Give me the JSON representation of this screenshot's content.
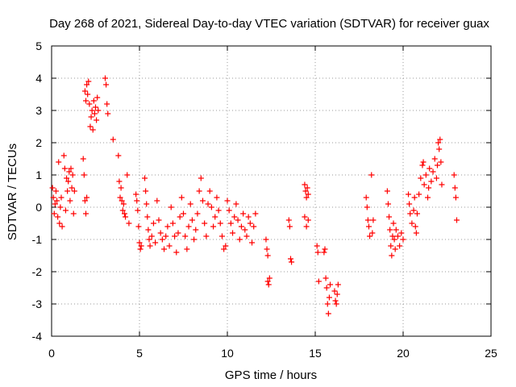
{
  "chart_data": {
    "type": "scatter",
    "title": "Day 268 of 2021, Sidereal Day-to-day VTEC variation (SDTVAR) for receiver guax",
    "xlabel": "GPS time / hours",
    "ylabel": "SDTVAR / TECUs",
    "xlim": [
      0,
      25
    ],
    "ylim": [
      -4,
      5
    ],
    "xticks": [
      0,
      5,
      10,
      15,
      20,
      25
    ],
    "yticks": [
      -4,
      -3,
      -2,
      -1,
      0,
      1,
      2,
      3,
      4,
      5
    ],
    "grid": true,
    "marker": "+",
    "color": "#ff0000",
    "series": [
      {
        "name": "SDTVAR",
        "points": [
          [
            0.05,
            0.6
          ],
          [
            0.1,
            0.3
          ],
          [
            0.15,
            -0.2
          ],
          [
            0.2,
            0.1
          ],
          [
            0.25,
            0.5
          ],
          [
            0.3,
            0.2
          ],
          [
            0.35,
            -0.3
          ],
          [
            0.4,
            1.4
          ],
          [
            0.45,
            -0.5
          ],
          [
            0.5,
            0.0
          ],
          [
            0.55,
            0.3
          ],
          [
            0.6,
            -0.6
          ],
          [
            0.7,
            1.6
          ],
          [
            0.75,
            1.2
          ],
          [
            0.8,
            -0.1
          ],
          [
            0.85,
            0.9
          ],
          [
            0.9,
            0.5
          ],
          [
            0.95,
            0.8
          ],
          [
            1.0,
            1.1
          ],
          [
            1.05,
            0.2
          ],
          [
            1.1,
            1.2
          ],
          [
            1.15,
            0.6
          ],
          [
            1.2,
            1.0
          ],
          [
            1.25,
            -0.2
          ],
          [
            1.3,
            0.5
          ],
          [
            1.8,
            1.5
          ],
          [
            1.85,
            1.0
          ],
          [
            1.9,
            0.2
          ],
          [
            1.95,
            -0.2
          ],
          [
            2.0,
            0.3
          ],
          [
            1.9,
            3.6
          ],
          [
            1.95,
            3.3
          ],
          [
            2.0,
            3.8
          ],
          [
            2.05,
            3.5
          ],
          [
            2.1,
            3.9
          ],
          [
            2.15,
            3.2
          ],
          [
            2.2,
            2.5
          ],
          [
            2.25,
            2.8
          ],
          [
            2.3,
            3.0
          ],
          [
            2.35,
            2.4
          ],
          [
            2.4,
            3.3
          ],
          [
            2.45,
            2.9
          ],
          [
            2.5,
            3.1
          ],
          [
            2.55,
            2.7
          ],
          [
            2.6,
            3.4
          ],
          [
            2.65,
            3.0
          ],
          [
            3.05,
            4.0
          ],
          [
            3.1,
            3.8
          ],
          [
            3.15,
            3.2
          ],
          [
            3.2,
            2.9
          ],
          [
            3.5,
            2.1
          ],
          [
            3.8,
            1.6
          ],
          [
            3.85,
            0.8
          ],
          [
            3.9,
            0.3
          ],
          [
            3.95,
            0.6
          ],
          [
            4.0,
            0.2
          ],
          [
            4.05,
            -0.1
          ],
          [
            4.1,
            0.1
          ],
          [
            4.15,
            -0.2
          ],
          [
            4.2,
            -0.3
          ],
          [
            4.3,
            1.0
          ],
          [
            4.4,
            -0.5
          ],
          [
            4.8,
            0.4
          ],
          [
            4.85,
            0.2
          ],
          [
            4.9,
            -0.1
          ],
          [
            4.95,
            -0.6
          ],
          [
            5.0,
            -1.1
          ],
          [
            5.05,
            -1.3
          ],
          [
            5.1,
            -1.2
          ],
          [
            5.3,
            0.9
          ],
          [
            5.35,
            0.5
          ],
          [
            5.4,
            0.1
          ],
          [
            5.45,
            -0.3
          ],
          [
            5.5,
            -0.7
          ],
          [
            5.55,
            -1.0
          ],
          [
            5.6,
            -1.2
          ],
          [
            5.7,
            -0.9
          ],
          [
            5.8,
            -0.5
          ],
          [
            5.9,
            -1.1
          ],
          [
            6.0,
            0.2
          ],
          [
            6.1,
            -0.4
          ],
          [
            6.2,
            -0.8
          ],
          [
            6.3,
            -1.0
          ],
          [
            6.4,
            -1.3
          ],
          [
            6.5,
            -0.9
          ],
          [
            6.6,
            -0.6
          ],
          [
            6.7,
            -1.2
          ],
          [
            6.8,
            0.0
          ],
          [
            6.9,
            -0.5
          ],
          [
            7.0,
            -0.9
          ],
          [
            7.1,
            -1.4
          ],
          [
            7.2,
            -0.8
          ],
          [
            7.3,
            -0.3
          ],
          [
            7.4,
            0.3
          ],
          [
            7.5,
            -0.2
          ],
          [
            7.6,
            -0.9
          ],
          [
            7.7,
            -1.3
          ],
          [
            7.8,
            -0.6
          ],
          [
            7.9,
            0.1
          ],
          [
            8.0,
            -0.4
          ],
          [
            8.1,
            -1.0
          ],
          [
            8.2,
            -0.7
          ],
          [
            8.3,
            -0.2
          ],
          [
            8.4,
            0.5
          ],
          [
            8.5,
            0.9
          ],
          [
            8.6,
            0.2
          ],
          [
            8.7,
            -0.5
          ],
          [
            8.8,
            -0.9
          ],
          [
            8.9,
            0.1
          ],
          [
            9.0,
            0.5
          ],
          [
            9.1,
            0.0
          ],
          [
            9.2,
            -0.6
          ],
          [
            9.3,
            -0.3
          ],
          [
            9.4,
            0.3
          ],
          [
            9.5,
            -0.1
          ],
          [
            9.6,
            -0.5
          ],
          [
            9.7,
            -0.9
          ],
          [
            9.8,
            -1.3
          ],
          [
            9.9,
            -1.2
          ],
          [
            10.0,
            0.2
          ],
          [
            10.1,
            -0.1
          ],
          [
            10.2,
            -0.5
          ],
          [
            10.3,
            -0.8
          ],
          [
            10.4,
            -0.3
          ],
          [
            10.5,
            0.1
          ],
          [
            10.6,
            -0.4
          ],
          [
            10.7,
            -1.0
          ],
          [
            10.8,
            -0.6
          ],
          [
            10.9,
            -0.2
          ],
          [
            11.0,
            -0.7
          ],
          [
            11.1,
            -0.9
          ],
          [
            11.2,
            -0.3
          ],
          [
            11.3,
            -0.5
          ],
          [
            11.4,
            -1.1
          ],
          [
            11.5,
            -0.6
          ],
          [
            11.6,
            -0.2
          ],
          [
            12.2,
            -1.0
          ],
          [
            12.25,
            -1.3
          ],
          [
            12.3,
            -1.5
          ],
          [
            12.3,
            -2.3
          ],
          [
            12.35,
            -2.4
          ],
          [
            12.4,
            -2.2
          ],
          [
            13.5,
            -0.4
          ],
          [
            13.55,
            -0.6
          ],
          [
            13.6,
            -1.6
          ],
          [
            13.65,
            -1.7
          ],
          [
            14.4,
            0.7
          ],
          [
            14.45,
            0.5
          ],
          [
            14.5,
            0.3
          ],
          [
            14.55,
            0.6
          ],
          [
            14.6,
            0.4
          ],
          [
            14.4,
            -0.3
          ],
          [
            14.5,
            -0.6
          ],
          [
            14.6,
            -0.4
          ],
          [
            15.1,
            -1.2
          ],
          [
            15.15,
            -1.4
          ],
          [
            15.2,
            -2.3
          ],
          [
            15.5,
            -1.4
          ],
          [
            15.55,
            -1.3
          ],
          [
            15.6,
            -2.2
          ],
          [
            15.65,
            -2.5
          ],
          [
            15.7,
            -3.0
          ],
          [
            15.75,
            -3.3
          ],
          [
            15.8,
            -2.8
          ],
          [
            15.85,
            -2.4
          ],
          [
            16.1,
            -2.6
          ],
          [
            16.15,
            -2.9
          ],
          [
            16.2,
            -3.0
          ],
          [
            16.25,
            -2.7
          ],
          [
            16.3,
            -2.4
          ],
          [
            17.9,
            0.3
          ],
          [
            17.95,
            0.0
          ],
          [
            18.0,
            -0.4
          ],
          [
            18.05,
            -0.6
          ],
          [
            18.1,
            -0.9
          ],
          [
            18.2,
            1.0
          ],
          [
            18.25,
            -0.8
          ],
          [
            18.3,
            -0.4
          ],
          [
            19.1,
            0.5
          ],
          [
            19.15,
            0.1
          ],
          [
            19.2,
            -0.3
          ],
          [
            19.25,
            -0.7
          ],
          [
            19.3,
            -1.2
          ],
          [
            19.35,
            -1.5
          ],
          [
            19.4,
            -0.9
          ],
          [
            19.45,
            -0.5
          ],
          [
            19.5,
            -1.0
          ],
          [
            19.55,
            -1.3
          ],
          [
            19.6,
            -0.7
          ],
          [
            19.7,
            -0.9
          ],
          [
            19.8,
            -1.2
          ],
          [
            19.9,
            -0.8
          ],
          [
            20.0,
            -1.0
          ],
          [
            20.3,
            0.4
          ],
          [
            20.35,
            0.1
          ],
          [
            20.4,
            -0.2
          ],
          [
            20.5,
            -0.5
          ],
          [
            20.6,
            -0.1
          ],
          [
            20.65,
            0.3
          ],
          [
            20.7,
            -0.6
          ],
          [
            20.75,
            -0.8
          ],
          [
            20.8,
            -0.2
          ],
          [
            20.9,
            0.4
          ],
          [
            21.0,
            0.9
          ],
          [
            21.1,
            1.3
          ],
          [
            21.15,
            1.4
          ],
          [
            21.2,
            0.7
          ],
          [
            21.3,
            1.0
          ],
          [
            21.4,
            0.3
          ],
          [
            21.45,
            0.6
          ],
          [
            21.5,
            1.2
          ],
          [
            21.6,
            0.8
          ],
          [
            21.7,
            1.1
          ],
          [
            21.8,
            1.5
          ],
          [
            21.9,
            0.9
          ],
          [
            21.95,
            1.3
          ],
          [
            22.0,
            2.0
          ],
          [
            22.05,
            1.8
          ],
          [
            22.1,
            2.1
          ],
          [
            22.15,
            1.4
          ],
          [
            22.2,
            0.7
          ],
          [
            22.9,
            1.0
          ],
          [
            22.95,
            0.6
          ],
          [
            23.0,
            0.3
          ],
          [
            23.05,
            -0.4
          ]
        ]
      }
    ]
  }
}
